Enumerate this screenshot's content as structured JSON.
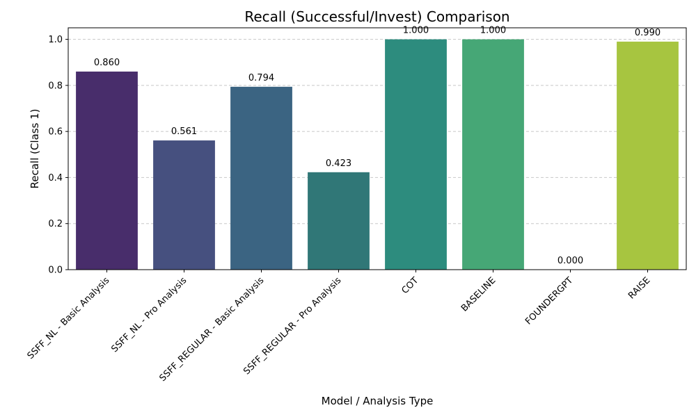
{
  "chart_data": {
    "type": "bar",
    "title": "Recall (Successful/Invest) Comparison",
    "xlabel": "Model / Analysis Type",
    "ylabel": "Recall (Class 1)",
    "ylim": [
      0,
      1.05
    ],
    "yticks": [
      "0.0",
      "0.2",
      "0.4",
      "0.6",
      "0.8",
      "1.0"
    ],
    "grid": "y-dashed",
    "categories": [
      "SSFF_NL - Basic Analysis",
      "SSFF_NL - Pro Analysis",
      "SSFF_REGULAR - Basic Analysis",
      "SSFF_REGULAR - Pro Analysis",
      "COT",
      "BASELINE",
      "FOUNDERGPT",
      "RAISE"
    ],
    "values": [
      0.86,
      0.561,
      0.794,
      0.423,
      1.0,
      1.0,
      0.0,
      0.99
    ],
    "value_labels": [
      "0.860",
      "0.561",
      "0.794",
      "0.423",
      "1.000",
      "1.000",
      "0.000",
      "0.990"
    ],
    "colors": [
      "#482d6b",
      "#46507f",
      "#3b6482",
      "#307777",
      "#2d8c7e",
      "#46a776",
      "#7cc25a",
      "#a7c540"
    ]
  }
}
